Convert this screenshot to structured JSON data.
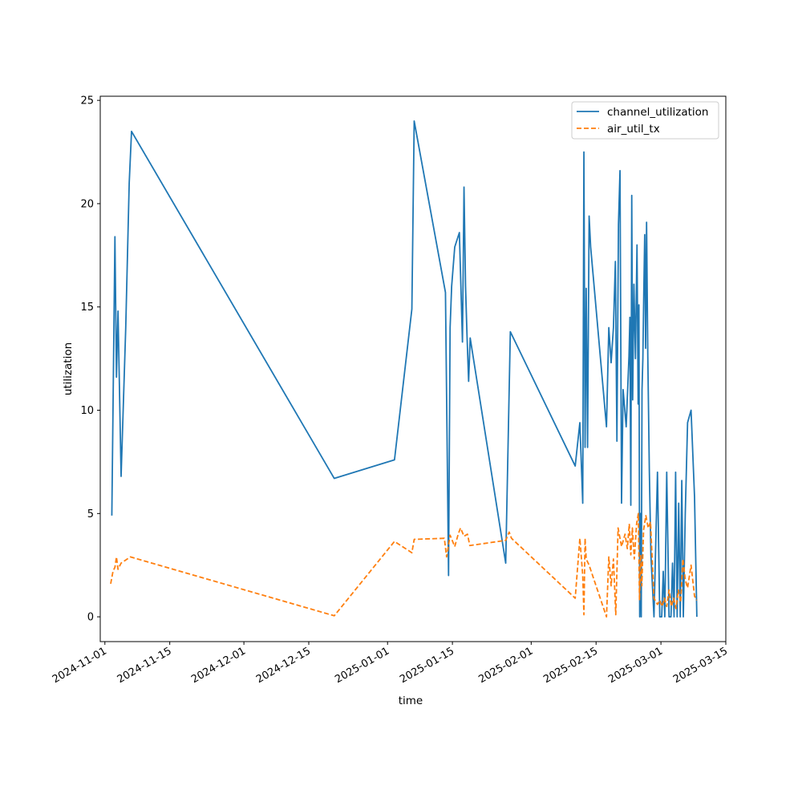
{
  "chart_data": {
    "type": "line",
    "xlabel": "time",
    "ylabel": "utilization",
    "x_axis": "date",
    "xlim": [
      "2024-10-31",
      "2025-03-15"
    ],
    "ylim": [
      -1.2,
      25.2
    ],
    "x_ticks": [
      "2024-11-01",
      "2024-11-15",
      "2024-12-01",
      "2024-12-15",
      "2025-01-01",
      "2025-01-15",
      "2025-02-01",
      "2025-02-15",
      "2025-03-01",
      "2025-03-15"
    ],
    "y_ticks": [
      0,
      5,
      10,
      15,
      20,
      25
    ],
    "grid": false,
    "legend": "top-right",
    "series": [
      {
        "name": "channel_utilization",
        "color": "#1f77b4",
        "style": "solid",
        "points": [
          [
            "2024-11-02",
            4.9
          ],
          [
            "2024-11-03",
            18.4
          ],
          [
            "2024-11-03",
            11.6
          ],
          [
            "2024-11-03",
            14.8
          ],
          [
            "2024-11-04",
            6.8
          ],
          [
            "2024-11-05",
            14.0
          ],
          [
            "2024-11-06",
            21.0
          ],
          [
            "2024-11-06",
            23.5
          ],
          [
            "2024-12-20",
            6.7
          ],
          [
            "2025-01-02",
            7.6
          ],
          [
            "2025-01-06",
            14.9
          ],
          [
            "2025-01-06",
            24.0
          ],
          [
            "2025-01-13",
            15.7
          ],
          [
            "2025-01-14",
            2.0
          ],
          [
            "2025-01-14",
            14.0
          ],
          [
            "2025-01-14",
            16.0
          ],
          [
            "2025-01-15",
            17.9
          ],
          [
            "2025-01-16",
            18.6
          ],
          [
            "2025-01-17",
            13.3
          ],
          [
            "2025-01-17",
            20.8
          ],
          [
            "2025-01-17",
            16.0
          ],
          [
            "2025-01-18",
            13.5
          ],
          [
            "2025-01-18",
            11.4
          ],
          [
            "2025-01-18",
            13.5
          ],
          [
            "2025-01-26",
            2.6
          ],
          [
            "2025-01-27",
            13.8
          ],
          [
            "2025-02-10",
            7.3
          ],
          [
            "2025-02-11",
            9.4
          ],
          [
            "2025-02-12",
            5.5
          ],
          [
            "2025-02-12",
            22.5
          ],
          [
            "2025-02-12",
            8.2
          ],
          [
            "2025-02-12",
            15.9
          ],
          [
            "2025-02-13",
            8.2
          ],
          [
            "2025-02-13",
            19.4
          ],
          [
            "2025-02-13",
            17.9
          ],
          [
            "2025-02-17",
            9.2
          ],
          [
            "2025-02-17",
            14.0
          ],
          [
            "2025-02-18",
            12.3
          ],
          [
            "2025-02-18",
            14.0
          ],
          [
            "2025-02-19",
            17.2
          ],
          [
            "2025-02-19",
            8.5
          ],
          [
            "2025-02-19",
            19.0
          ],
          [
            "2025-02-20",
            21.6
          ],
          [
            "2025-02-20",
            5.5
          ],
          [
            "2025-02-20",
            11.0
          ],
          [
            "2025-02-21",
            9.2
          ],
          [
            "2025-02-22",
            12.6
          ],
          [
            "2025-02-22",
            14.5
          ],
          [
            "2025-02-22",
            5.4
          ],
          [
            "2025-02-22",
            20.4
          ],
          [
            "2025-02-22",
            10.5
          ],
          [
            "2025-02-23",
            16.1
          ],
          [
            "2025-02-23",
            12.5
          ],
          [
            "2025-02-23",
            18.0
          ],
          [
            "2025-02-24",
            10.3
          ],
          [
            "2025-02-24",
            15.1
          ],
          [
            "2025-02-24",
            0.0
          ],
          [
            "2025-02-24",
            5.0
          ],
          [
            "2025-02-24",
            0.0
          ],
          [
            "2025-02-24",
            11.0
          ],
          [
            "2025-02-25",
            12.5
          ],
          [
            "2025-02-25",
            15.7
          ],
          [
            "2025-02-25",
            18.5
          ],
          [
            "2025-02-25",
            13.0
          ],
          [
            "2025-02-25",
            19.1
          ],
          [
            "2025-02-26",
            12.6
          ],
          [
            "2025-02-26",
            7.0
          ],
          [
            "2025-02-26",
            3.0
          ],
          [
            "2025-02-27",
            0.0
          ],
          [
            "2025-02-28",
            7.0
          ],
          [
            "2025-02-28",
            0.0
          ],
          [
            "2025-03-01",
            0.0
          ],
          [
            "2025-03-01",
            2.2
          ],
          [
            "2025-03-01",
            0.0
          ],
          [
            "2025-03-02",
            7.0
          ],
          [
            "2025-03-02",
            0.0
          ],
          [
            "2025-03-03",
            0.0
          ],
          [
            "2025-03-03",
            2.6
          ],
          [
            "2025-03-03",
            0.0
          ],
          [
            "2025-03-04",
            7.0
          ],
          [
            "2025-03-04",
            0.0
          ],
          [
            "2025-03-04",
            5.5
          ],
          [
            "2025-03-05",
            0.0
          ],
          [
            "2025-03-05",
            6.6
          ],
          [
            "2025-03-05",
            0.0
          ],
          [
            "2025-03-06",
            5.0
          ],
          [
            "2025-03-06",
            9.4
          ],
          [
            "2025-03-07",
            10.0
          ],
          [
            "2025-03-08",
            5.8
          ],
          [
            "2025-03-08",
            0.0
          ]
        ]
      },
      {
        "name": "air_util_tx",
        "color": "#ff7f0e",
        "style": "dashed",
        "points": [
          [
            "2024-11-02",
            1.6
          ],
          [
            "2024-11-02",
            2.2
          ],
          [
            "2024-11-03",
            2.4
          ],
          [
            "2024-11-03",
            2.9
          ],
          [
            "2024-11-03",
            2.3
          ],
          [
            "2024-11-04",
            2.6
          ],
          [
            "2024-11-06",
            2.9
          ],
          [
            "2024-12-20",
            0.05
          ],
          [
            "2025-01-02",
            3.65
          ],
          [
            "2025-01-06",
            3.1
          ],
          [
            "2025-01-06",
            3.75
          ],
          [
            "2025-01-13",
            3.8
          ],
          [
            "2025-01-13",
            2.9
          ],
          [
            "2025-01-14",
            3.95
          ],
          [
            "2025-01-15",
            3.4
          ],
          [
            "2025-01-16",
            4.0
          ],
          [
            "2025-01-16",
            4.3
          ],
          [
            "2025-01-17",
            3.9
          ],
          [
            "2025-01-18",
            4.0
          ],
          [
            "2025-01-18",
            3.45
          ],
          [
            "2025-01-26",
            3.7
          ],
          [
            "2025-01-27",
            4.1
          ],
          [
            "2025-01-27",
            3.8
          ],
          [
            "2025-02-10",
            0.9
          ],
          [
            "2025-02-11",
            3.8
          ],
          [
            "2025-02-12",
            2.0
          ],
          [
            "2025-02-12",
            0.1
          ],
          [
            "2025-02-12",
            3.8
          ],
          [
            "2025-02-12",
            2.8
          ],
          [
            "2025-02-13",
            2.5
          ],
          [
            "2025-02-17",
            0.0
          ],
          [
            "2025-02-17",
            2.9
          ],
          [
            "2025-02-18",
            1.5
          ],
          [
            "2025-02-18",
            2.8
          ],
          [
            "2025-02-19",
            0.1
          ],
          [
            "2025-02-19",
            4.3
          ],
          [
            "2025-02-20",
            3.4
          ],
          [
            "2025-02-21",
            4.0
          ],
          [
            "2025-02-21",
            3.3
          ],
          [
            "2025-02-22",
            4.5
          ],
          [
            "2025-02-22",
            3.0
          ],
          [
            "2025-02-22",
            4.3
          ],
          [
            "2025-02-23",
            2.8
          ],
          [
            "2025-02-23",
            4.5
          ],
          [
            "2025-02-24",
            5.0
          ],
          [
            "2025-02-24",
            0.8
          ],
          [
            "2025-02-24",
            3.0
          ],
          [
            "2025-02-24",
            1.5
          ],
          [
            "2025-02-25",
            4.2
          ],
          [
            "2025-02-25",
            4.9
          ],
          [
            "2025-02-26",
            4.3
          ],
          [
            "2025-02-26",
            4.6
          ],
          [
            "2025-02-27",
            0.9
          ],
          [
            "2025-02-28",
            0.6
          ],
          [
            "2025-02-28",
            0.8
          ],
          [
            "2025-03-01",
            0.5
          ],
          [
            "2025-03-01",
            0.9
          ],
          [
            "2025-03-02",
            0.5
          ],
          [
            "2025-03-02",
            1.3
          ],
          [
            "2025-03-03",
            0.5
          ],
          [
            "2025-03-03",
            0.9
          ],
          [
            "2025-03-04",
            0.4
          ],
          [
            "2025-03-04",
            1.3
          ],
          [
            "2025-03-05",
            0.7
          ],
          [
            "2025-03-05",
            2.8
          ],
          [
            "2025-03-06",
            1.8
          ],
          [
            "2025-03-06",
            1.4
          ],
          [
            "2025-03-07",
            2.5
          ],
          [
            "2025-03-08",
            1.0
          ],
          [
            "2025-03-08",
            0.8
          ]
        ]
      }
    ]
  }
}
